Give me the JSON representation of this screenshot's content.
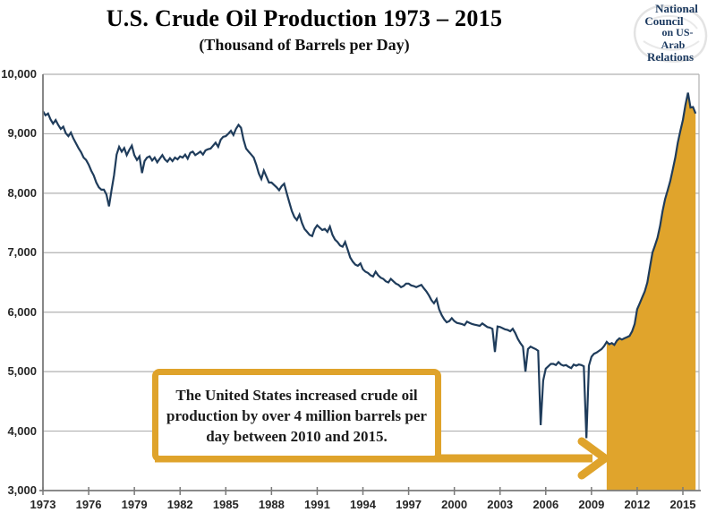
{
  "header": {
    "title": "U.S. Crude Oil Production 1973 – 2015",
    "subtitle": "(Thousand of Barrels per Day)"
  },
  "logo": {
    "lines": [
      "National",
      "Council",
      "on US-",
      "Arab",
      "Relations"
    ]
  },
  "annotation": {
    "text": "The United States increased crude oil production by over 4 million barrels per day between 2010 and 2015."
  },
  "colors": {
    "line": "#1f3c5b",
    "highlight": "#e0a42c",
    "callout_border": "#dfa32b",
    "gridline": "#b0b0b0",
    "axis": "#7a7a7a",
    "tick_label": "#262626",
    "logo_text": "#1c3a60"
  },
  "chart_data": {
    "type": "line",
    "title": "U.S. Crude Oil Production 1973 – 2015",
    "ylabel_unit": "Thousand of Barrels per Day",
    "grid": "horizontal",
    "legend": "none",
    "xlim": [
      1973,
      2015.9
    ],
    "ylim": [
      3000,
      10000
    ],
    "x_start_year": 1973,
    "points_per_year": 6,
    "x_tick_years": [
      1973,
      1976,
      1979,
      1982,
      1985,
      1988,
      1991,
      1994,
      1997,
      2000,
      2003,
      2006,
      2009,
      2012,
      2015
    ],
    "y_ticks": [
      {
        "value": 3000,
        "label": "3,000"
      },
      {
        "value": 4000,
        "label": "4,000"
      },
      {
        "value": 5000,
        "label": "5,000"
      },
      {
        "value": 6000,
        "label": "6,000"
      },
      {
        "value": 7000,
        "label": "7,000"
      },
      {
        "value": 8000,
        "label": "8,000"
      },
      {
        "value": 9000,
        "label": "9,000"
      },
      {
        "value": 10000,
        "label": "10,000"
      }
    ],
    "highlight_region": {
      "start_year": 2010,
      "color": "#e0a42c"
    },
    "series": [
      {
        "name": "U.S. crude oil production (thousand barrels/day, ~bimonthly)",
        "values": [
          9380,
          9310,
          9340,
          9240,
          9170,
          9230,
          9150,
          9080,
          9120,
          9010,
          8960,
          9020,
          8920,
          8840,
          8760,
          8690,
          8600,
          8560,
          8480,
          8380,
          8300,
          8180,
          8100,
          8060,
          8060,
          7980,
          7780,
          8050,
          8300,
          8650,
          8780,
          8700,
          8760,
          8640,
          8730,
          8800,
          8640,
          8560,
          8620,
          8340,
          8540,
          8600,
          8620,
          8550,
          8600,
          8520,
          8580,
          8640,
          8570,
          8530,
          8590,
          8540,
          8600,
          8570,
          8620,
          8600,
          8650,
          8580,
          8680,
          8700,
          8640,
          8670,
          8700,
          8650,
          8720,
          8740,
          8750,
          8800,
          8850,
          8780,
          8900,
          8950,
          8960,
          9000,
          9050,
          8980,
          9080,
          9150,
          9100,
          8900,
          8750,
          8700,
          8650,
          8600,
          8480,
          8330,
          8240,
          8380,
          8280,
          8180,
          8180,
          8140,
          8100,
          8050,
          8120,
          8160,
          8000,
          7850,
          7700,
          7600,
          7550,
          7640,
          7500,
          7400,
          7350,
          7300,
          7280,
          7400,
          7460,
          7420,
          7380,
          7400,
          7350,
          7440,
          7300,
          7220,
          7180,
          7120,
          7100,
          7180,
          7050,
          6920,
          6850,
          6800,
          6780,
          6820,
          6720,
          6680,
          6660,
          6620,
          6600,
          6680,
          6620,
          6580,
          6560,
          6520,
          6500,
          6560,
          6520,
          6480,
          6460,
          6420,
          6440,
          6480,
          6480,
          6450,
          6440,
          6420,
          6440,
          6460,
          6400,
          6350,
          6280,
          6200,
          6150,
          6220,
          6050,
          5950,
          5880,
          5830,
          5850,
          5900,
          5850,
          5820,
          5810,
          5800,
          5780,
          5840,
          5820,
          5800,
          5790,
          5780,
          5770,
          5810,
          5780,
          5750,
          5740,
          5720,
          5330,
          5760,
          5750,
          5730,
          5710,
          5700,
          5680,
          5720,
          5650,
          5550,
          5480,
          5420,
          5000,
          5380,
          5420,
          5400,
          5380,
          5350,
          4100,
          4850,
          5050,
          5090,
          5130,
          5130,
          5110,
          5160,
          5120,
          5100,
          5110,
          5080,
          5060,
          5120,
          5100,
          5120,
          5110,
          5090,
          3880,
          5100,
          5250,
          5300,
          5320,
          5350,
          5380,
          5430,
          5500,
          5460,
          5480,
          5450,
          5520,
          5560,
          5540,
          5560,
          5580,
          5600,
          5680,
          5800,
          6050,
          6150,
          6250,
          6350,
          6500,
          6750,
          7000,
          7120,
          7250,
          7450,
          7700,
          7900,
          8050,
          8200,
          8400,
          8600,
          8850,
          9050,
          9230,
          9480,
          9690,
          9440,
          9450,
          9340
        ]
      }
    ]
  }
}
